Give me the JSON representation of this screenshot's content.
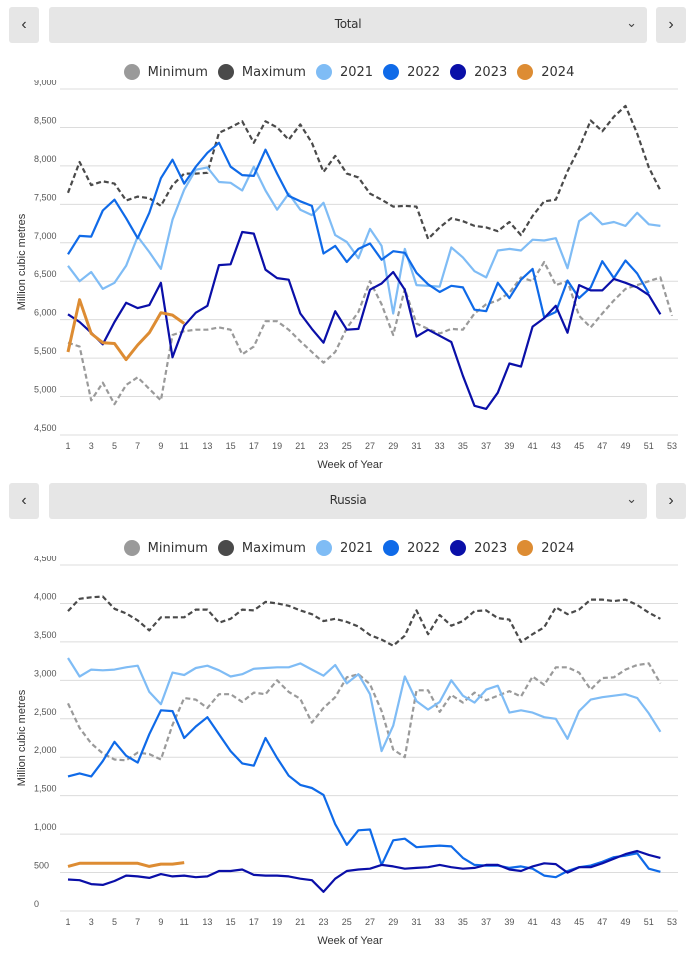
{
  "panels": [
    {
      "selector": {
        "label": "Total",
        "prev_icon": "chevron-left-icon",
        "next_icon": "chevron-right-icon",
        "dropdown_icon": "chevron-down-icon"
      },
      "legend": [
        {
          "label": "Minimum",
          "color": "#9a9a9a"
        },
        {
          "label": "Maximum",
          "color": "#4a4a4a"
        },
        {
          "label": "2021",
          "color": "#7fbcf5"
        },
        {
          "label": "2022",
          "color": "#0f6ae8"
        },
        {
          "label": "2023",
          "color": "#0a0fa8"
        },
        {
          "label": "2024",
          "color": "#dd8c33"
        }
      ]
    },
    {
      "selector": {
        "label": "Russia",
        "prev_icon": "chevron-left-icon",
        "next_icon": "chevron-right-icon",
        "dropdown_icon": "chevron-down-icon"
      },
      "legend": [
        {
          "label": "Minimum",
          "color": "#9a9a9a"
        },
        {
          "label": "Maximum",
          "color": "#4a4a4a"
        },
        {
          "label": "2021",
          "color": "#7fbcf5"
        },
        {
          "label": "2022",
          "color": "#0f6ae8"
        },
        {
          "label": "2023",
          "color": "#0a0fa8"
        },
        {
          "label": "2024",
          "color": "#dd8c33"
        }
      ]
    }
  ],
  "chart_data": [
    {
      "type": "line",
      "title": "Total",
      "xlabel": "Week of Year",
      "ylabel": "Million cubic metres",
      "xlim": [
        1,
        53
      ],
      "ylim": [
        4500,
        9000
      ],
      "yticks": [
        4500,
        5000,
        5500,
        6000,
        6500,
        7000,
        7500,
        8000,
        8500,
        9000
      ],
      "ytick_labels": [
        "4,500",
        "5,000",
        "5,500",
        "6,000",
        "6,500",
        "7,000",
        "7,500",
        "8,000",
        "8,500",
        "9,000"
      ],
      "xticks": [
        1,
        3,
        5,
        7,
        9,
        11,
        13,
        15,
        17,
        19,
        21,
        23,
        25,
        27,
        29,
        31,
        33,
        35,
        37,
        39,
        41,
        43,
        45,
        47,
        49,
        51,
        53
      ],
      "grid": true,
      "legend_position": "top",
      "series": [
        {
          "name": "Minimum",
          "color": "#9a9a9a",
          "dashed": true,
          "values": [
            5700,
            5650,
            4950,
            5180,
            4900,
            5150,
            5250,
            5100,
            4950,
            5800,
            5850,
            5870,
            5870,
            5900,
            5870,
            5550,
            5650,
            5980,
            5980,
            5870,
            5720,
            5580,
            5440,
            5580,
            5890,
            6100,
            6500,
            6200,
            5800,
            6400,
            5950,
            5880,
            5820,
            5880,
            5870,
            6080,
            6200,
            6250,
            6350,
            6550,
            6500,
            6750,
            6450,
            6500,
            6050,
            5900,
            6080,
            6250,
            6400,
            6450,
            6500,
            6550,
            6050
          ]
        },
        {
          "name": "Maximum",
          "color": "#4a4a4a",
          "dashed": true,
          "values": [
            7650,
            8050,
            7750,
            7800,
            7770,
            7550,
            7600,
            7580,
            7480,
            7750,
            7900,
            7900,
            7910,
            8430,
            8500,
            8580,
            8300,
            8580,
            8500,
            8340,
            8540,
            8300,
            7920,
            8130,
            7900,
            7850,
            7640,
            7560,
            7470,
            7480,
            7470,
            7050,
            7200,
            7320,
            7280,
            7220,
            7200,
            7150,
            7270,
            7100,
            7350,
            7540,
            7560,
            7930,
            8230,
            8590,
            8450,
            8640,
            8780,
            8420,
            7980,
            7680,
            null
          ]
        },
        {
          "name": "2021",
          "color": "#7fbcf5",
          "dashed": false,
          "values": [
            6700,
            6500,
            6620,
            6400,
            6480,
            6700,
            7080,
            6880,
            6660,
            7300,
            7690,
            7950,
            7980,
            7790,
            7780,
            7680,
            7990,
            7680,
            7430,
            7640,
            7430,
            7360,
            7520,
            7100,
            7010,
            6800,
            7180,
            6960,
            6080,
            6920,
            6450,
            6440,
            6430,
            6940,
            6810,
            6630,
            6550,
            6900,
            6920,
            6900,
            7040,
            7030,
            7060,
            6670,
            7280,
            7390,
            7240,
            7270,
            7220,
            7390,
            7240,
            7220,
            null
          ]
        },
        {
          "name": "2022",
          "color": "#0f6ae8",
          "dashed": false,
          "values": [
            6850,
            7090,
            7080,
            7420,
            7560,
            7320,
            7060,
            7390,
            7840,
            8080,
            7770,
            7990,
            8170,
            8300,
            7990,
            7880,
            7870,
            8210,
            7900,
            7610,
            7540,
            7480,
            6860,
            6960,
            6750,
            6920,
            6990,
            6780,
            6890,
            6870,
            6610,
            6460,
            6360,
            6440,
            6420,
            6130,
            6110,
            6480,
            6280,
            6520,
            6660,
            6030,
            6100,
            6510,
            6280,
            6420,
            6760,
            6540,
            6770,
            6600,
            6340,
            null,
            null
          ]
        },
        {
          "name": "2023",
          "color": "#0a0fa8",
          "dashed": false,
          "values": [
            6070,
            5970,
            5830,
            5680,
            5970,
            6220,
            6150,
            6190,
            6480,
            5510,
            5920,
            6090,
            6180,
            6710,
            6720,
            7140,
            7120,
            6650,
            6540,
            6520,
            6080,
            5880,
            5700,
            6110,
            5870,
            5880,
            6390,
            6470,
            6620,
            6390,
            5780,
            5870,
            5790,
            5710,
            5270,
            4880,
            4840,
            5050,
            5430,
            5390,
            5910,
            6020,
            6180,
            5830,
            6450,
            6380,
            6380,
            6530,
            6480,
            6420,
            6320,
            6070,
            null
          ]
        },
        {
          "name": "2024",
          "color": "#dd8c33",
          "dashed": false,
          "values": [
            5580,
            6260,
            5820,
            5700,
            5690,
            5480,
            5670,
            5830,
            6090,
            6060,
            5950,
            null,
            null,
            null,
            null,
            null,
            null,
            null,
            null,
            null,
            null,
            null,
            null,
            null,
            null,
            null,
            null,
            null,
            null,
            null,
            null,
            null,
            null,
            null,
            null,
            null,
            null,
            null,
            null,
            null,
            null,
            null,
            null,
            null,
            null,
            null,
            null,
            null,
            null,
            null,
            null,
            null,
            null
          ]
        }
      ]
    },
    {
      "type": "line",
      "title": "Russia",
      "xlabel": "Week of Year",
      "ylabel": "Million cubic metres",
      "xlim": [
        1,
        53
      ],
      "ylim": [
        0,
        4500
      ],
      "yticks": [
        0,
        500,
        1000,
        1500,
        2000,
        2500,
        3000,
        3500,
        4000,
        4500
      ],
      "ytick_labels": [
        "0",
        "500",
        "1,000",
        "1,500",
        "2,000",
        "2,500",
        "3,000",
        "3,500",
        "4,000",
        "4,500"
      ],
      "xticks": [
        1,
        3,
        5,
        7,
        9,
        11,
        13,
        15,
        17,
        19,
        21,
        23,
        25,
        27,
        29,
        31,
        33,
        35,
        37,
        39,
        41,
        43,
        45,
        47,
        49,
        51,
        53
      ],
      "grid": true,
      "legend_position": "top",
      "series": [
        {
          "name": "Minimum",
          "color": "#9a9a9a",
          "dashed": true,
          "values": [
            2700,
            2380,
            2180,
            2050,
            1970,
            1960,
            2060,
            2040,
            1970,
            2420,
            2770,
            2750,
            2640,
            2820,
            2820,
            2720,
            2840,
            2820,
            3000,
            2850,
            2760,
            2450,
            2640,
            2780,
            3040,
            3080,
            2950,
            2600,
            2100,
            2000,
            2870,
            2870,
            2590,
            2810,
            2710,
            2840,
            2740,
            2800,
            2860,
            2790,
            3050,
            2940,
            3170,
            3170,
            3100,
            2880,
            3030,
            3040,
            3140,
            3200,
            3220,
            2960,
            null
          ]
        },
        {
          "name": "Maximum",
          "color": "#4a4a4a",
          "dashed": true,
          "values": [
            3900,
            4060,
            4080,
            4090,
            3930,
            3870,
            3780,
            3650,
            3820,
            3820,
            3820,
            3920,
            3920,
            3750,
            3800,
            3920,
            3910,
            4020,
            4000,
            3970,
            3910,
            3860,
            3770,
            3800,
            3760,
            3700,
            3590,
            3530,
            3450,
            3580,
            3910,
            3600,
            3850,
            3710,
            3770,
            3900,
            3910,
            3810,
            3790,
            3500,
            3600,
            3690,
            3950,
            3860,
            3920,
            4050,
            4050,
            4030,
            4050,
            3980,
            3880,
            3800,
            null
          ]
        },
        {
          "name": "2021",
          "color": "#7fbcf5",
          "dashed": false,
          "values": [
            3290,
            3050,
            3140,
            3130,
            3140,
            3170,
            3190,
            2850,
            2690,
            3100,
            3070,
            3160,
            3190,
            3130,
            3050,
            3080,
            3150,
            3160,
            3170,
            3170,
            3220,
            3140,
            3060,
            3200,
            2960,
            3080,
            2820,
            2080,
            2410,
            3050,
            2730,
            2620,
            2720,
            3000,
            2800,
            2710,
            2880,
            2930,
            2580,
            2610,
            2580,
            2520,
            2500,
            2240,
            2600,
            2750,
            2780,
            2800,
            2820,
            2770,
            2570,
            2330,
            null
          ]
        },
        {
          "name": "2022",
          "color": "#0f6ae8",
          "dashed": false,
          "values": [
            1750,
            1790,
            1750,
            1950,
            2200,
            2020,
            1930,
            2300,
            2610,
            2600,
            2250,
            2400,
            2520,
            2300,
            2080,
            1920,
            1890,
            2250,
            1990,
            1760,
            1640,
            1600,
            1510,
            1130,
            860,
            1050,
            1060,
            600,
            920,
            940,
            830,
            840,
            850,
            840,
            690,
            600,
            590,
            590,
            560,
            580,
            550,
            460,
            440,
            520,
            570,
            590,
            640,
            700,
            720,
            750,
            550,
            510,
            null
          ]
        },
        {
          "name": "2023",
          "color": "#0a0fa8",
          "dashed": false,
          "values": [
            410,
            400,
            350,
            340,
            390,
            460,
            450,
            430,
            480,
            450,
            460,
            440,
            450,
            520,
            520,
            540,
            470,
            460,
            460,
            450,
            420,
            400,
            250,
            420,
            520,
            540,
            550,
            600,
            580,
            550,
            560,
            570,
            600,
            570,
            550,
            560,
            600,
            600,
            540,
            520,
            580,
            620,
            610,
            500,
            570,
            570,
            620,
            680,
            740,
            780,
            730,
            690,
            null
          ]
        },
        {
          "name": "2024",
          "color": "#dd8c33",
          "dashed": false,
          "values": [
            580,
            620,
            620,
            620,
            620,
            620,
            620,
            580,
            610,
            610,
            630,
            null,
            null,
            null,
            null,
            null,
            null,
            null,
            null,
            null,
            null,
            null,
            null,
            null,
            null,
            null,
            null,
            null,
            null,
            null,
            null,
            null,
            null,
            null,
            null,
            null,
            null,
            null,
            null,
            null,
            null,
            null,
            null,
            null,
            null,
            null,
            null,
            null,
            null,
            null,
            null,
            null,
            null
          ]
        }
      ]
    }
  ]
}
